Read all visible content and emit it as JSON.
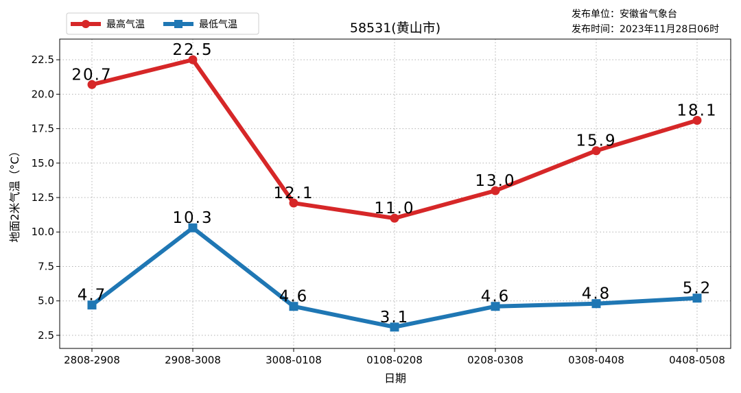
{
  "chart_data": {
    "type": "line",
    "title": "58531(黄山市)",
    "xlabel": "日期",
    "ylabel": "地面2米气温（°C）",
    "categories": [
      "2808-2908",
      "2908-3008",
      "3008-0108",
      "0108-0208",
      "0208-0308",
      "0308-0408",
      "0408-0508"
    ],
    "series": [
      {
        "name": "最高气温",
        "values": [
          20.7,
          22.5,
          12.1,
          11.0,
          13.0,
          15.9,
          18.1
        ],
        "labels": [
          "20.7",
          "22.5",
          "12.1",
          "11.0",
          "13.0",
          "15.9",
          "18.1"
        ],
        "color": "#d62728",
        "marker": "circle"
      },
      {
        "name": "最低气温",
        "values": [
          4.7,
          10.3,
          4.6,
          3.1,
          4.6,
          4.8,
          5.2
        ],
        "labels": [
          "4.7",
          "10.3",
          "4.6",
          "3.1",
          "4.6",
          "4.8",
          "5.2"
        ],
        "color": "#1f77b4",
        "marker": "square"
      }
    ],
    "yticks": [
      "2.5",
      "5.0",
      "7.5",
      "10.0",
      "12.5",
      "15.0",
      "17.5",
      "20.0",
      "22.5"
    ],
    "ylim": [
      1.55,
      24.0
    ],
    "grid": true,
    "legend_position": "top-left",
    "annotations": {
      "publisher": "发布单位：安徽省气象台",
      "publish_time": "发布时间：2023年11月28日06时"
    }
  }
}
